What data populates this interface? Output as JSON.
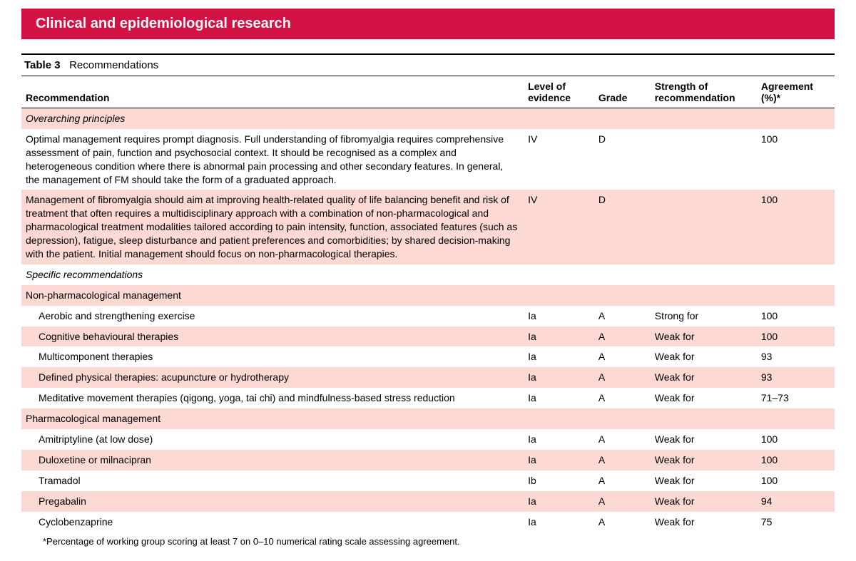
{
  "banner": "Clinical and epidemiological research",
  "table": {
    "label": "Table 3",
    "title": "Recommendations",
    "columns": {
      "rec": "Recommendation",
      "loe": "Level of evidence",
      "grade": "Grade",
      "strength": "Strength of recommendation",
      "agree": "Agreement (%)*"
    },
    "rows": [
      {
        "type": "section",
        "shade": true,
        "italic": true,
        "rec": "Overarching principles"
      },
      {
        "type": "data",
        "shade": false,
        "rec": "Optimal management requires prompt diagnosis. Full understanding of fibromyalgia requires comprehensive assessment of pain, function and psychosocial context. It should be recognised as a complex and heterogeneous condition where there is abnormal pain processing and other secondary features. In general, the management of FM should take the form of a graduated approach.",
        "loe": "IV",
        "grade": "D",
        "strength": "",
        "agree": "100"
      },
      {
        "type": "data",
        "shade": true,
        "rec": "Management of fibromyalgia should aim at improving health-related quality of life balancing benefit and risk of treatment that often requires a multidisciplinary approach with a combination of non-pharmacological and pharmacological treatment modalities tailored according to pain intensity, function, associated features (such as depression), fatigue, sleep disturbance and patient preferences and comorbidities; by shared decision-making with the patient. Initial management should focus on non-pharmacological therapies.",
        "loe": "IV",
        "grade": "D",
        "strength": "",
        "agree": "100"
      },
      {
        "type": "section",
        "shade": false,
        "italic": true,
        "rec": "Specific recommendations"
      },
      {
        "type": "section",
        "shade": true,
        "italic": false,
        "rec": "Non-pharmacological management"
      },
      {
        "type": "data",
        "shade": false,
        "indent": true,
        "rec": "Aerobic and strengthening exercise",
        "loe": "Ia",
        "grade": "A",
        "strength": "Strong for",
        "agree": "100"
      },
      {
        "type": "data",
        "shade": true,
        "indent": true,
        "rec": "Cognitive behavioural therapies",
        "loe": "Ia",
        "grade": "A",
        "strength": "Weak for",
        "agree": "100"
      },
      {
        "type": "data",
        "shade": false,
        "indent": true,
        "rec": "Multicomponent therapies",
        "loe": "Ia",
        "grade": "A",
        "strength": "Weak for",
        "agree": "93"
      },
      {
        "type": "data",
        "shade": true,
        "indent": true,
        "rec": "Defined physical therapies: acupuncture or hydrotherapy",
        "loe": "Ia",
        "grade": "A",
        "strength": "Weak for",
        "agree": "93"
      },
      {
        "type": "data",
        "shade": false,
        "indent": true,
        "rec": "Meditative movement therapies (qigong, yoga, tai chi) and mindfulness-based stress reduction",
        "loe": "Ia",
        "grade": "A",
        "strength": "Weak for",
        "agree": "71–73"
      },
      {
        "type": "section",
        "shade": true,
        "italic": false,
        "rec": "Pharmacological management"
      },
      {
        "type": "data",
        "shade": false,
        "indent": true,
        "rec": "Amitriptyline (at low dose)",
        "loe": "Ia",
        "grade": "A",
        "strength": "Weak for",
        "agree": "100"
      },
      {
        "type": "data",
        "shade": true,
        "indent": true,
        "rec": "Duloxetine or milnacipran",
        "loe": "Ia",
        "grade": "A",
        "strength": "Weak for",
        "agree": "100"
      },
      {
        "type": "data",
        "shade": false,
        "indent": true,
        "rec": "Tramadol",
        "loe": "Ib",
        "grade": "A",
        "strength": "Weak for",
        "agree": "100"
      },
      {
        "type": "data",
        "shade": true,
        "indent": true,
        "rec": "Pregabalin",
        "loe": "Ia",
        "grade": "A",
        "strength": "Weak for",
        "agree": "94"
      },
      {
        "type": "data",
        "shade": false,
        "indent": true,
        "rec": "Cyclobenzaprine",
        "loe": "Ia",
        "grade": "A",
        "strength": "Weak for",
        "agree": "75"
      }
    ]
  },
  "footnote": "*Percentage of working group scoring at least 7 on 0–10 numerical rating scale assessing agreement.",
  "colors": {
    "banner_bg": "#d11242",
    "shade_bg": "#fcd9d2"
  }
}
